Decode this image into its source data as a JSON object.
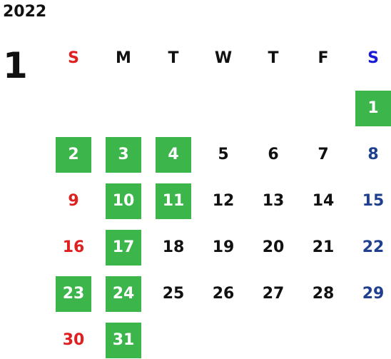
{
  "calendar": {
    "year": "2022",
    "month": "1",
    "weekdays": [
      "S",
      "M",
      "T",
      "W",
      "T",
      "F",
      "S"
    ],
    "days": [
      "1",
      "2",
      "3",
      "4",
      "5",
      "6",
      "7",
      "8",
      "9",
      "10",
      "11",
      "12",
      "13",
      "14",
      "15",
      "16",
      "17",
      "18",
      "19",
      "20",
      "21",
      "22",
      "23",
      "24",
      "25",
      "26",
      "27",
      "28",
      "29",
      "30",
      "31"
    ],
    "first_weekday_index": 6,
    "highlighted_days": [
      1,
      2,
      3,
      4,
      10,
      11,
      17,
      23,
      24,
      31
    ]
  },
  "colors": {
    "sunday": "#e02020",
    "saturday_header": "#1a1ad6",
    "saturday": "#1f3f8f",
    "weekday": "#111111",
    "highlight": "#3cb54a",
    "highlight_text": "#ffffff"
  }
}
